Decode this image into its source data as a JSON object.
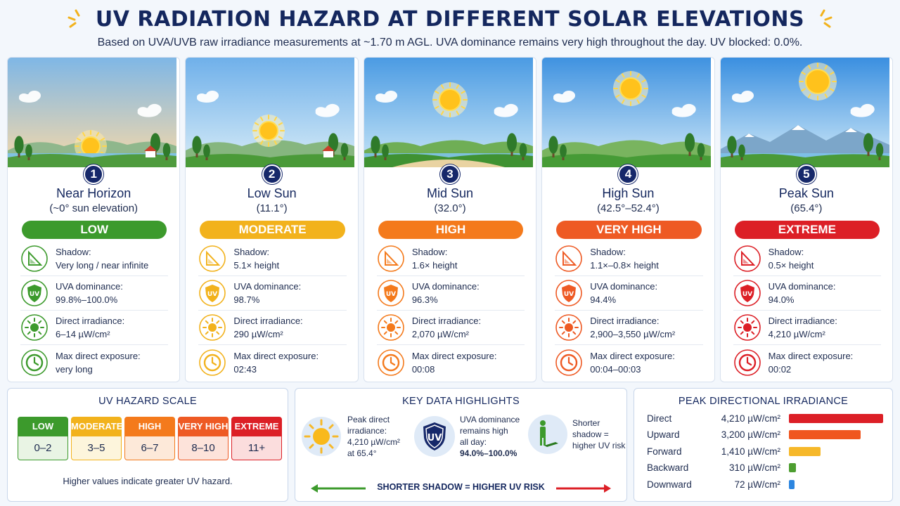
{
  "header": {
    "title": "UV RADIATION HAZARD AT DIFFERENT SOLAR ELEVATIONS",
    "subtitle": "Based on UVA/UVB raw irradiance measurements at ~1.70 m AGL. UVA dominance remains very high throughout the day. UV blocked: 0.0%."
  },
  "labels": {
    "shadow": "Shadow:",
    "uva": "UVA dominance:",
    "irradiance": "Direct irradiance:",
    "exposure": "Max direct exposure:"
  },
  "stages": [
    {
      "num": "1",
      "name": "Near Horizon",
      "elevation": "(~0° sun elevation)",
      "level": "LOW",
      "color": "#3c9a2c",
      "shadow": "Very long / near infinite",
      "uva": "99.8%–100.0%",
      "irradiance": "6–14 µW/cm²",
      "exposure": "very long"
    },
    {
      "num": "2",
      "name": "Low Sun",
      "elevation": "(11.1°)",
      "level": "MODERATE",
      "color": "#f2b21c",
      "shadow": "5.1× height",
      "uva": "98.7%",
      "irradiance": "290 µW/cm²",
      "exposure": "02:43"
    },
    {
      "num": "3",
      "name": "Mid Sun",
      "elevation": "(32.0°)",
      "level": "HIGH",
      "color": "#f47a1c",
      "shadow": "1.6× height",
      "uva": "96.3%",
      "irradiance": "2,070 µW/cm²",
      "exposure": "00:08"
    },
    {
      "num": "4",
      "name": "High Sun",
      "elevation": "(42.5°–52.4°)",
      "level": "VERY HIGH",
      "color": "#ee5a24",
      "shadow": "1.1×–0.8× height",
      "uva": "94.4%",
      "irradiance": "2,900–3,550 µW/cm²",
      "exposure": "00:04–00:03"
    },
    {
      "num": "5",
      "name": "Peak Sun",
      "elevation": "(65.4°)",
      "level": "EXTREME",
      "color": "#dc1f26",
      "shadow": "0.5× height",
      "uva": "94.0%",
      "irradiance": "4,210 µW/cm²",
      "exposure": "00:02"
    }
  ],
  "scale": {
    "title": "UV HAZARD SCALE",
    "items": [
      {
        "label": "LOW",
        "range": "0–2",
        "color": "#3c9a2c",
        "bg": "#e9f4e4"
      },
      {
        "label": "MODERATE",
        "range": "3–5",
        "color": "#f2b21c",
        "bg": "#fdf5dc"
      },
      {
        "label": "HIGH",
        "range": "6–7",
        "color": "#f47a1c",
        "bg": "#fde9d9"
      },
      {
        "label": "VERY HIGH",
        "range": "8–10",
        "color": "#ee5a24",
        "bg": "#fde3da"
      },
      {
        "label": "EXTREME",
        "range": "11+",
        "color": "#dc1f26",
        "bg": "#fbdddd"
      }
    ],
    "note": "Higher values indicate greater UV hazard."
  },
  "highlights": {
    "title": "KEY DATA HIGHLIGHTS",
    "peak": {
      "line1": "Peak direct",
      "line2": "irradiance:",
      "value": "4,210 µW/cm²",
      "line4": "at 65.4°"
    },
    "uva": {
      "line1": "UVA dominance",
      "line2": "remains high",
      "line3": "all day:",
      "value": "94.0%–100.0%"
    },
    "shadow": {
      "line1": "Shorter",
      "line2": "shadow =",
      "line3": "higher UV risk"
    },
    "arrow_label": "SHORTER SHADOW = HIGHER UV RISK",
    "uv_badge": "UV"
  },
  "directional": {
    "title": "PEAK DIRECTIONAL IRRADIANCE",
    "max": 4210,
    "rows": [
      {
        "name": "Direct",
        "value": 4210,
        "label": "4,210 µW/cm²",
        "color": "#dc1f26"
      },
      {
        "name": "Upward",
        "value": 3200,
        "label": "3,200 µW/cm²",
        "color": "#f0561f"
      },
      {
        "name": "Forward",
        "value": 1410,
        "label": "1,410 µW/cm²",
        "color": "#f6b82a"
      },
      {
        "name": "Backward",
        "value": 310,
        "label": "310 µW/cm²",
        "color": "#4d9e30"
      },
      {
        "name": "Downward",
        "value": 72,
        "label": "72 µW/cm²",
        "color": "#2d86e0"
      }
    ]
  }
}
